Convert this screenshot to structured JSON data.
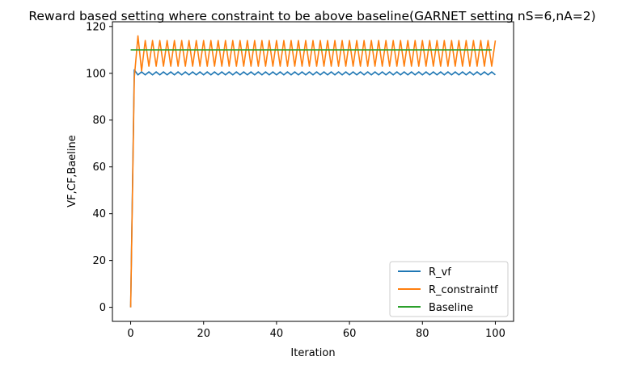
{
  "chart_data": {
    "type": "line",
    "title": "Reward based setting where constraint to be above baseline(GARNET setting nS=6,nA=2)",
    "xlabel": "Iteration",
    "ylabel": "VF,CF,Baeline",
    "xlim": [
      -5,
      105
    ],
    "ylim": [
      -6,
      122
    ],
    "xticks": [
      0,
      20,
      40,
      60,
      80,
      100
    ],
    "yticks": [
      0,
      20,
      40,
      60,
      80,
      100,
      120
    ],
    "legend_position": "lower-right",
    "grid": false,
    "series": [
      {
        "name": "R_vf",
        "color": "#1f77b4",
        "x": [
          0,
          1,
          2,
          3,
          4,
          5,
          6,
          7,
          8,
          9,
          10,
          11,
          12,
          13,
          14,
          15,
          16,
          17,
          18,
          19,
          20,
          21,
          22,
          23,
          24,
          25,
          26,
          27,
          28,
          29,
          30,
          31,
          32,
          33,
          34,
          35,
          36,
          37,
          38,
          39,
          40,
          41,
          42,
          43,
          44,
          45,
          46,
          47,
          48,
          49,
          50,
          51,
          52,
          53,
          54,
          55,
          56,
          57,
          58,
          59,
          60,
          61,
          62,
          63,
          64,
          65,
          66,
          67,
          68,
          69,
          70,
          71,
          72,
          73,
          74,
          75,
          76,
          77,
          78,
          79,
          80,
          81,
          82,
          83,
          84,
          85,
          86,
          87,
          88,
          89,
          90,
          91,
          92,
          93,
          94,
          95,
          96,
          97,
          98,
          99,
          100
        ],
        "y": [
          0,
          101.5,
          99.3,
          100.6,
          99.3,
          100.6,
          99.3,
          100.6,
          99.3,
          100.6,
          99.3,
          100.6,
          99.3,
          100.6,
          99.3,
          100.6,
          99.3,
          100.6,
          99.3,
          100.6,
          99.3,
          100.6,
          99.3,
          100.6,
          99.3,
          100.6,
          99.3,
          100.6,
          99.3,
          100.6,
          99.3,
          100.6,
          99.3,
          100.6,
          99.3,
          100.6,
          99.3,
          100.6,
          99.3,
          100.6,
          99.3,
          100.6,
          99.3,
          100.6,
          99.3,
          100.6,
          99.3,
          100.6,
          99.3,
          100.6,
          99.3,
          100.6,
          99.3,
          100.6,
          99.3,
          100.6,
          99.3,
          100.6,
          99.3,
          100.6,
          99.3,
          100.6,
          99.3,
          100.6,
          99.3,
          100.6,
          99.3,
          100.6,
          99.3,
          100.6,
          99.3,
          100.6,
          99.3,
          100.6,
          99.3,
          100.6,
          99.3,
          100.6,
          99.3,
          100.6,
          99.3,
          100.6,
          99.3,
          100.6,
          99.3,
          100.6,
          99.3,
          100.6,
          99.3,
          100.6,
          99.3,
          100.6,
          99.3,
          100.6,
          99.3,
          100.6,
          99.3,
          100.6,
          99.3,
          100.6,
          99.3
        ]
      },
      {
        "name": "R_constraintf",
        "color": "#ff7f0e",
        "x": [
          0,
          1,
          2,
          3,
          4,
          5,
          6,
          7,
          8,
          9,
          10,
          11,
          12,
          13,
          14,
          15,
          16,
          17,
          18,
          19,
          20,
          21,
          22,
          23,
          24,
          25,
          26,
          27,
          28,
          29,
          30,
          31,
          32,
          33,
          34,
          35,
          36,
          37,
          38,
          39,
          40,
          41,
          42,
          43,
          44,
          45,
          46,
          47,
          48,
          49,
          50,
          51,
          52,
          53,
          54,
          55,
          56,
          57,
          58,
          59,
          60,
          61,
          62,
          63,
          64,
          65,
          66,
          67,
          68,
          69,
          70,
          71,
          72,
          73,
          74,
          75,
          76,
          77,
          78,
          79,
          80,
          81,
          82,
          83,
          84,
          85,
          86,
          87,
          88,
          89,
          90,
          91,
          92,
          93,
          94,
          95,
          96,
          97,
          98,
          99,
          100
        ],
        "y": [
          0,
          98,
          116,
          101,
          114,
          103,
          114,
          103,
          114,
          103,
          114,
          103,
          114,
          103,
          114,
          103,
          114,
          103,
          114,
          103,
          114,
          103,
          114,
          103,
          114,
          103,
          114,
          103,
          114,
          103,
          114,
          103,
          114,
          103,
          114,
          103,
          114,
          103,
          114,
          103,
          114,
          103,
          114,
          103,
          114,
          103,
          114,
          103,
          114,
          103,
          114,
          103,
          114,
          103,
          114,
          103,
          114,
          103,
          114,
          103,
          114,
          103,
          114,
          103,
          114,
          103,
          114,
          103,
          114,
          103,
          114,
          103,
          114,
          103,
          114,
          103,
          114,
          103,
          114,
          103,
          114,
          103,
          114,
          103,
          114,
          103,
          114,
          103,
          114,
          103,
          114,
          103,
          114,
          103,
          114,
          103,
          114,
          103,
          114,
          103,
          114
        ]
      },
      {
        "name": "Baseline",
        "color": "#2ca02c",
        "x": [
          0,
          99
        ],
        "y": [
          110,
          110
        ]
      }
    ]
  }
}
